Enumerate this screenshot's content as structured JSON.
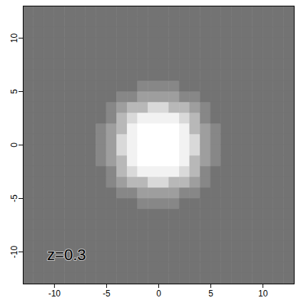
{
  "chart_data": {
    "type": "heatmap",
    "xlim": [
      -13,
      13
    ],
    "ylim": [
      -13,
      13
    ],
    "xticks": [
      -10,
      -5,
      0,
      5,
      10
    ],
    "yticks": [
      -10,
      -5,
      0,
      5,
      10
    ],
    "x_bins": [
      -13,
      -12,
      -11,
      -10,
      -9,
      -8,
      -7,
      -6,
      -5,
      -4,
      -3,
      -2,
      -1,
      0,
      1,
      2,
      3,
      4,
      5,
      6,
      7,
      8,
      9,
      10,
      11,
      12,
      13
    ],
    "y_bins": [
      -13,
      -12,
      -11,
      -10,
      -9,
      -8,
      -7,
      -6,
      -5,
      -4,
      -3,
      -2,
      -1,
      0,
      1,
      2,
      3,
      4,
      5,
      6,
      7,
      8,
      9,
      10,
      11,
      12,
      13
    ],
    "value_range": [
      0,
      1
    ],
    "values": [
      [
        0.45,
        0.45,
        0.45,
        0.45,
        0.45,
        0.45,
        0.45,
        0.45,
        0.45,
        0.45,
        0.45,
        0.45,
        0.45,
        0.45,
        0.45,
        0.45,
        0.45,
        0.45,
        0.45,
        0.45,
        0.45,
        0.45,
        0.45,
        0.45,
        0.45,
        0.45
      ],
      [
        0.45,
        0.45,
        0.45,
        0.45,
        0.45,
        0.45,
        0.45,
        0.45,
        0.45,
        0.45,
        0.45,
        0.45,
        0.45,
        0.45,
        0.45,
        0.45,
        0.45,
        0.45,
        0.45,
        0.45,
        0.45,
        0.45,
        0.45,
        0.45,
        0.45,
        0.45
      ],
      [
        0.45,
        0.45,
        0.45,
        0.45,
        0.45,
        0.45,
        0.45,
        0.45,
        0.45,
        0.45,
        0.45,
        0.45,
        0.45,
        0.45,
        0.45,
        0.45,
        0.45,
        0.45,
        0.45,
        0.45,
        0.45,
        0.45,
        0.45,
        0.45,
        0.45,
        0.45
      ],
      [
        0.45,
        0.45,
        0.45,
        0.45,
        0.45,
        0.45,
        0.45,
        0.45,
        0.45,
        0.45,
        0.45,
        0.45,
        0.45,
        0.45,
        0.45,
        0.45,
        0.45,
        0.45,
        0.45,
        0.45,
        0.45,
        0.45,
        0.45,
        0.45,
        0.45,
        0.45
      ],
      [
        0.45,
        0.45,
        0.45,
        0.45,
        0.45,
        0.45,
        0.45,
        0.45,
        0.45,
        0.45,
        0.45,
        0.45,
        0.45,
        0.45,
        0.45,
        0.45,
        0.45,
        0.45,
        0.45,
        0.45,
        0.45,
        0.45,
        0.45,
        0.45,
        0.45,
        0.45
      ],
      [
        0.45,
        0.45,
        0.45,
        0.45,
        0.45,
        0.45,
        0.45,
        0.45,
        0.45,
        0.45,
        0.45,
        0.45,
        0.45,
        0.45,
        0.45,
        0.45,
        0.45,
        0.45,
        0.45,
        0.45,
        0.45,
        0.45,
        0.45,
        0.45,
        0.45,
        0.45
      ],
      [
        0.45,
        0.45,
        0.45,
        0.45,
        0.45,
        0.45,
        0.45,
        0.45,
        0.45,
        0.45,
        0.45,
        0.45,
        0.45,
        0.45,
        0.45,
        0.45,
        0.45,
        0.45,
        0.45,
        0.45,
        0.45,
        0.45,
        0.45,
        0.45,
        0.45,
        0.45
      ],
      [
        0.45,
        0.45,
        0.45,
        0.45,
        0.45,
        0.45,
        0.45,
        0.45,
        0.45,
        0.45,
        0.45,
        0.53,
        0.53,
        0.53,
        0.53,
        0.45,
        0.45,
        0.45,
        0.45,
        0.45,
        0.45,
        0.45,
        0.45,
        0.45,
        0.45,
        0.45
      ],
      [
        0.45,
        0.45,
        0.45,
        0.45,
        0.45,
        0.45,
        0.45,
        0.45,
        0.45,
        0.53,
        0.53,
        0.62,
        0.62,
        0.62,
        0.62,
        0.53,
        0.53,
        0.45,
        0.45,
        0.45,
        0.45,
        0.45,
        0.45,
        0.45,
        0.45,
        0.45
      ],
      [
        0.45,
        0.45,
        0.45,
        0.45,
        0.45,
        0.45,
        0.45,
        0.45,
        0.53,
        0.62,
        0.72,
        0.72,
        0.85,
        0.85,
        0.72,
        0.72,
        0.62,
        0.53,
        0.45,
        0.45,
        0.45,
        0.45,
        0.45,
        0.45,
        0.45,
        0.45
      ],
      [
        0.45,
        0.45,
        0.45,
        0.45,
        0.45,
        0.45,
        0.45,
        0.45,
        0.53,
        0.72,
        0.85,
        0.95,
        0.95,
        0.95,
        0.95,
        0.85,
        0.72,
        0.53,
        0.45,
        0.45,
        0.45,
        0.45,
        0.45,
        0.45,
        0.45,
        0.45
      ],
      [
        0.45,
        0.45,
        0.45,
        0.45,
        0.45,
        0.45,
        0.45,
        0.53,
        0.62,
        0.72,
        0.95,
        1,
        1,
        1,
        1,
        0.95,
        0.72,
        0.62,
        0.53,
        0.45,
        0.45,
        0.45,
        0.45,
        0.45,
        0.45,
        0.45
      ],
      [
        0.45,
        0.45,
        0.45,
        0.45,
        0.45,
        0.45,
        0.45,
        0.53,
        0.62,
        0.85,
        0.95,
        1,
        1,
        1,
        1,
        0.95,
        0.85,
        0.62,
        0.53,
        0.45,
        0.45,
        0.45,
        0.45,
        0.45,
        0.45,
        0.45
      ],
      [
        0.45,
        0.45,
        0.45,
        0.45,
        0.45,
        0.45,
        0.45,
        0.53,
        0.62,
        0.85,
        0.95,
        1,
        1,
        1,
        1,
        0.95,
        0.85,
        0.62,
        0.53,
        0.45,
        0.45,
        0.45,
        0.45,
        0.45,
        0.45,
        0.45
      ],
      [
        0.45,
        0.45,
        0.45,
        0.45,
        0.45,
        0.45,
        0.45,
        0.53,
        0.62,
        0.72,
        0.95,
        1,
        1,
        1,
        1,
        0.95,
        0.72,
        0.62,
        0.53,
        0.45,
        0.45,
        0.45,
        0.45,
        0.45,
        0.45,
        0.45
      ],
      [
        0.45,
        0.45,
        0.45,
        0.45,
        0.45,
        0.45,
        0.45,
        0.45,
        0.53,
        0.72,
        0.85,
        0.95,
        0.95,
        0.95,
        0.95,
        0.85,
        0.72,
        0.53,
        0.45,
        0.45,
        0.45,
        0.45,
        0.45,
        0.45,
        0.45,
        0.45
      ],
      [
        0.45,
        0.45,
        0.45,
        0.45,
        0.45,
        0.45,
        0.45,
        0.45,
        0.53,
        0.62,
        0.72,
        0.72,
        0.85,
        0.85,
        0.72,
        0.72,
        0.62,
        0.53,
        0.45,
        0.45,
        0.45,
        0.45,
        0.45,
        0.45,
        0.45,
        0.45
      ],
      [
        0.45,
        0.45,
        0.45,
        0.45,
        0.45,
        0.45,
        0.45,
        0.45,
        0.45,
        0.53,
        0.53,
        0.62,
        0.62,
        0.62,
        0.62,
        0.53,
        0.53,
        0.45,
        0.45,
        0.45,
        0.45,
        0.45,
        0.45,
        0.45,
        0.45,
        0.45
      ],
      [
        0.45,
        0.45,
        0.45,
        0.45,
        0.45,
        0.45,
        0.45,
        0.45,
        0.45,
        0.45,
        0.45,
        0.53,
        0.53,
        0.53,
        0.53,
        0.45,
        0.45,
        0.45,
        0.45,
        0.45,
        0.45,
        0.45,
        0.45,
        0.45,
        0.45,
        0.45
      ],
      [
        0.45,
        0.45,
        0.45,
        0.45,
        0.45,
        0.45,
        0.45,
        0.45,
        0.45,
        0.45,
        0.45,
        0.45,
        0.45,
        0.45,
        0.45,
        0.45,
        0.45,
        0.45,
        0.45,
        0.45,
        0.45,
        0.45,
        0.45,
        0.45,
        0.45,
        0.45
      ],
      [
        0.45,
        0.45,
        0.45,
        0.45,
        0.45,
        0.45,
        0.45,
        0.45,
        0.45,
        0.45,
        0.45,
        0.45,
        0.45,
        0.45,
        0.45,
        0.45,
        0.45,
        0.45,
        0.45,
        0.45,
        0.45,
        0.45,
        0.45,
        0.45,
        0.45,
        0.45
      ],
      [
        0.45,
        0.45,
        0.45,
        0.45,
        0.45,
        0.45,
        0.45,
        0.45,
        0.45,
        0.45,
        0.45,
        0.45,
        0.45,
        0.45,
        0.45,
        0.45,
        0.45,
        0.45,
        0.45,
        0.45,
        0.45,
        0.45,
        0.45,
        0.45,
        0.45,
        0.45
      ],
      [
        0.45,
        0.45,
        0.45,
        0.45,
        0.45,
        0.45,
        0.45,
        0.45,
        0.45,
        0.45,
        0.45,
        0.45,
        0.45,
        0.45,
        0.45,
        0.45,
        0.45,
        0.45,
        0.45,
        0.45,
        0.45,
        0.45,
        0.45,
        0.45,
        0.45,
        0.45
      ],
      [
        0.45,
        0.45,
        0.45,
        0.45,
        0.45,
        0.45,
        0.45,
        0.45,
        0.45,
        0.45,
        0.45,
        0.45,
        0.45,
        0.45,
        0.45,
        0.45,
        0.45,
        0.45,
        0.45,
        0.45,
        0.45,
        0.45,
        0.45,
        0.45,
        0.45,
        0.45
      ],
      [
        0.45,
        0.45,
        0.45,
        0.45,
        0.45,
        0.45,
        0.45,
        0.45,
        0.45,
        0.45,
        0.45,
        0.45,
        0.45,
        0.45,
        0.45,
        0.45,
        0.45,
        0.45,
        0.45,
        0.45,
        0.45,
        0.45,
        0.45,
        0.45,
        0.45,
        0.45
      ],
      [
        0.45,
        0.45,
        0.45,
        0.45,
        0.45,
        0.45,
        0.45,
        0.45,
        0.45,
        0.45,
        0.45,
        0.45,
        0.45,
        0.45,
        0.45,
        0.45,
        0.45,
        0.45,
        0.45,
        0.45,
        0.45,
        0.45,
        0.45,
        0.45,
        0.45,
        0.45
      ]
    ],
    "annotations": [
      {
        "text": "z=0.3",
        "x": -10.7,
        "y": -10.3
      }
    ]
  }
}
